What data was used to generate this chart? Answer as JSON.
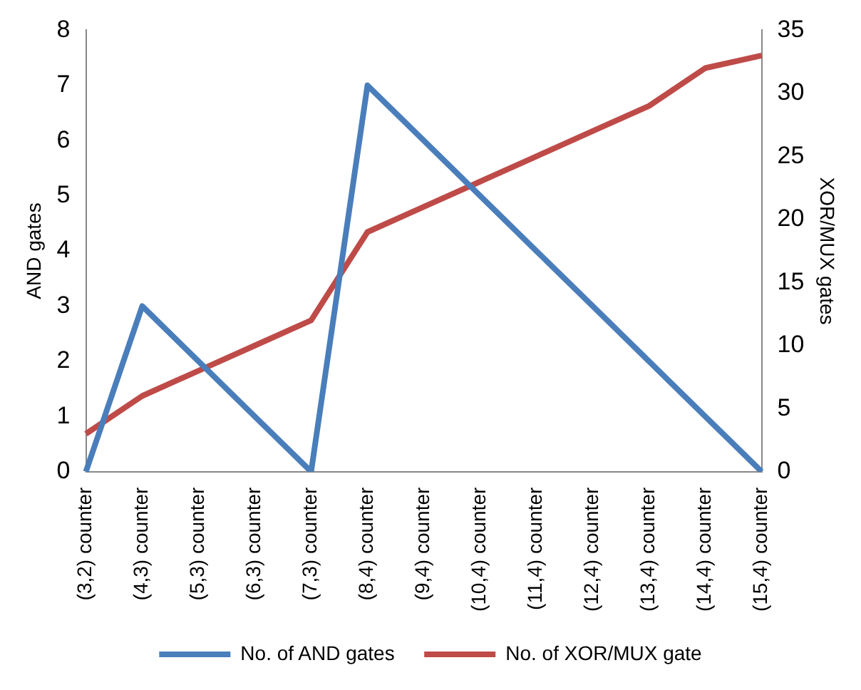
{
  "chart_data": {
    "type": "line",
    "ylabel": "AND gates",
    "y2label": "XOR/MUX gates",
    "categories": [
      "(3,2) counter",
      "(4,3) counter",
      "(5,3) counter",
      "(6,3) counter",
      "(7,3) counter",
      "(8,4) counter",
      "(9,4) counter",
      "(10,4) counter",
      "(11,4) counter",
      "(12,4) counter",
      "(13,4) counter",
      "(14,4) counter",
      "(15,4) counter"
    ],
    "series": [
      {
        "name": "No. of AND gates",
        "color": "#4a7ebb",
        "values": [
          0,
          3,
          2,
          1,
          0,
          7,
          6,
          5,
          4,
          3,
          2,
          1,
          0
        ]
      },
      {
        "name": "No. of XOR/MUX gate",
        "color": "#be4b48",
        "axis": "y2",
        "values": [
          3,
          6,
          8,
          10,
          12,
          19,
          21,
          23,
          25,
          27,
          29,
          32,
          33
        ]
      }
    ],
    "ylim": [
      0,
      8
    ],
    "yticks": [
      0,
      1,
      2,
      3,
      4,
      5,
      6,
      7,
      8
    ],
    "y2lim": [
      0,
      35
    ],
    "y2ticks": [
      0,
      5,
      10,
      15,
      20,
      25,
      30,
      35
    ],
    "grid": false,
    "legend": "bottom",
    "marker": "none",
    "line_style": "solid"
  }
}
